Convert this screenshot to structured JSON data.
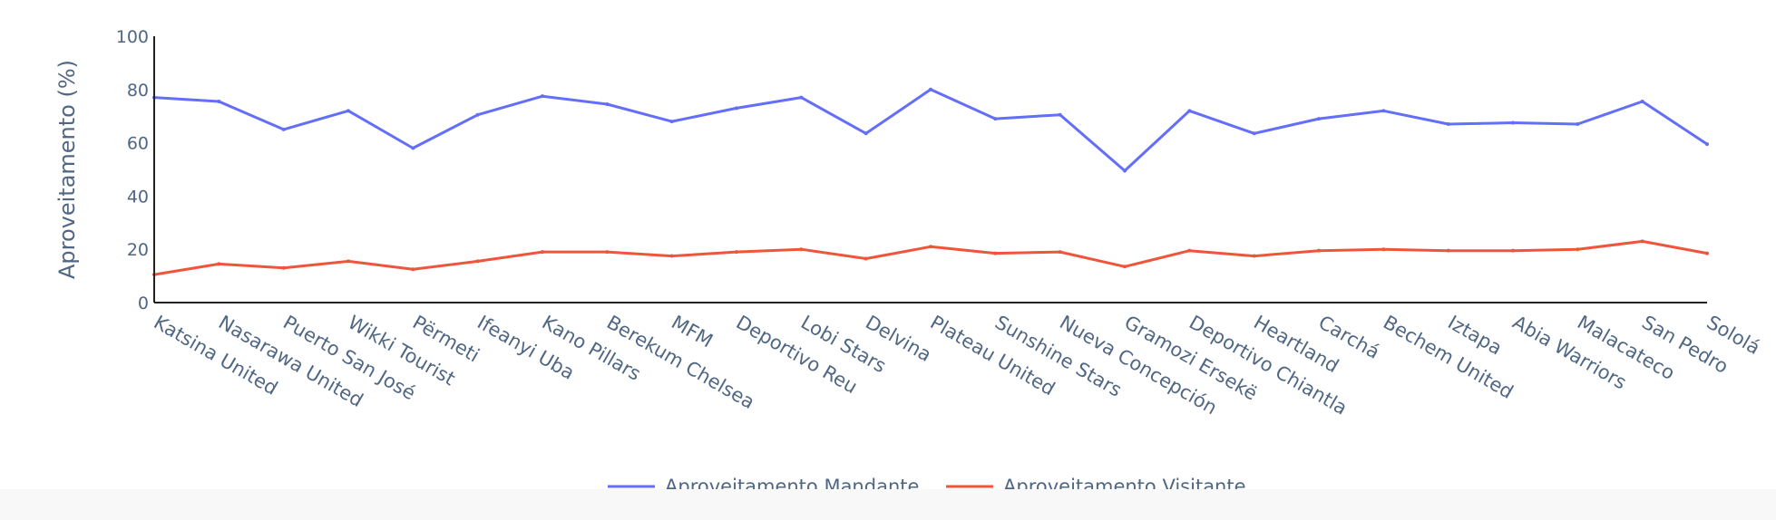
{
  "chart_data": {
    "type": "line",
    "title": "",
    "xlabel": "",
    "ylabel": "Aproveitamento (%)",
    "ylim": [
      0,
      100
    ],
    "yticks": [
      0,
      20,
      40,
      60,
      80,
      100
    ],
    "grid": false,
    "legend_position": "bottom-center",
    "categories": [
      "Katsina United",
      "Nasarawa United",
      "Puerto San José",
      "Wikki Tourist",
      "Përmeti",
      "Ifeanyi Uba",
      "Kano Pillars",
      "Berekum Chelsea",
      "MFM",
      "Deportivo Reu",
      "Lobi Stars",
      "Delvina",
      "Plateau United",
      "Sunshine Stars",
      "Nueva Concepción",
      "Gramozi Ersekë",
      "Deportivo Chiantla",
      "Heartland",
      "Carchá",
      "Bechem United",
      "Iztapa",
      "Abia Warriors",
      "Malacateco",
      "San Pedro",
      "Sololá"
    ],
    "series": [
      {
        "name": "Aproveitamento Mandante",
        "color": "#636efa",
        "values": [
          77,
          75.5,
          65,
          72,
          58,
          70.5,
          77.5,
          74.5,
          68,
          73,
          77,
          63.5,
          80,
          69,
          70.5,
          49.5,
          72,
          63.5,
          69,
          72,
          67,
          67.5,
          67,
          75.5,
          59.5
        ]
      },
      {
        "name": "Aproveitamento Visitante",
        "color": "#ef553b",
        "values": [
          10.5,
          14.5,
          13,
          15.5,
          12.5,
          15.5,
          19,
          19,
          17.5,
          19,
          20,
          16.5,
          21,
          18.5,
          19,
          13.5,
          19.5,
          17.5,
          19.5,
          20,
          19.5,
          19.5,
          20,
          23,
          18.5
        ]
      }
    ]
  }
}
